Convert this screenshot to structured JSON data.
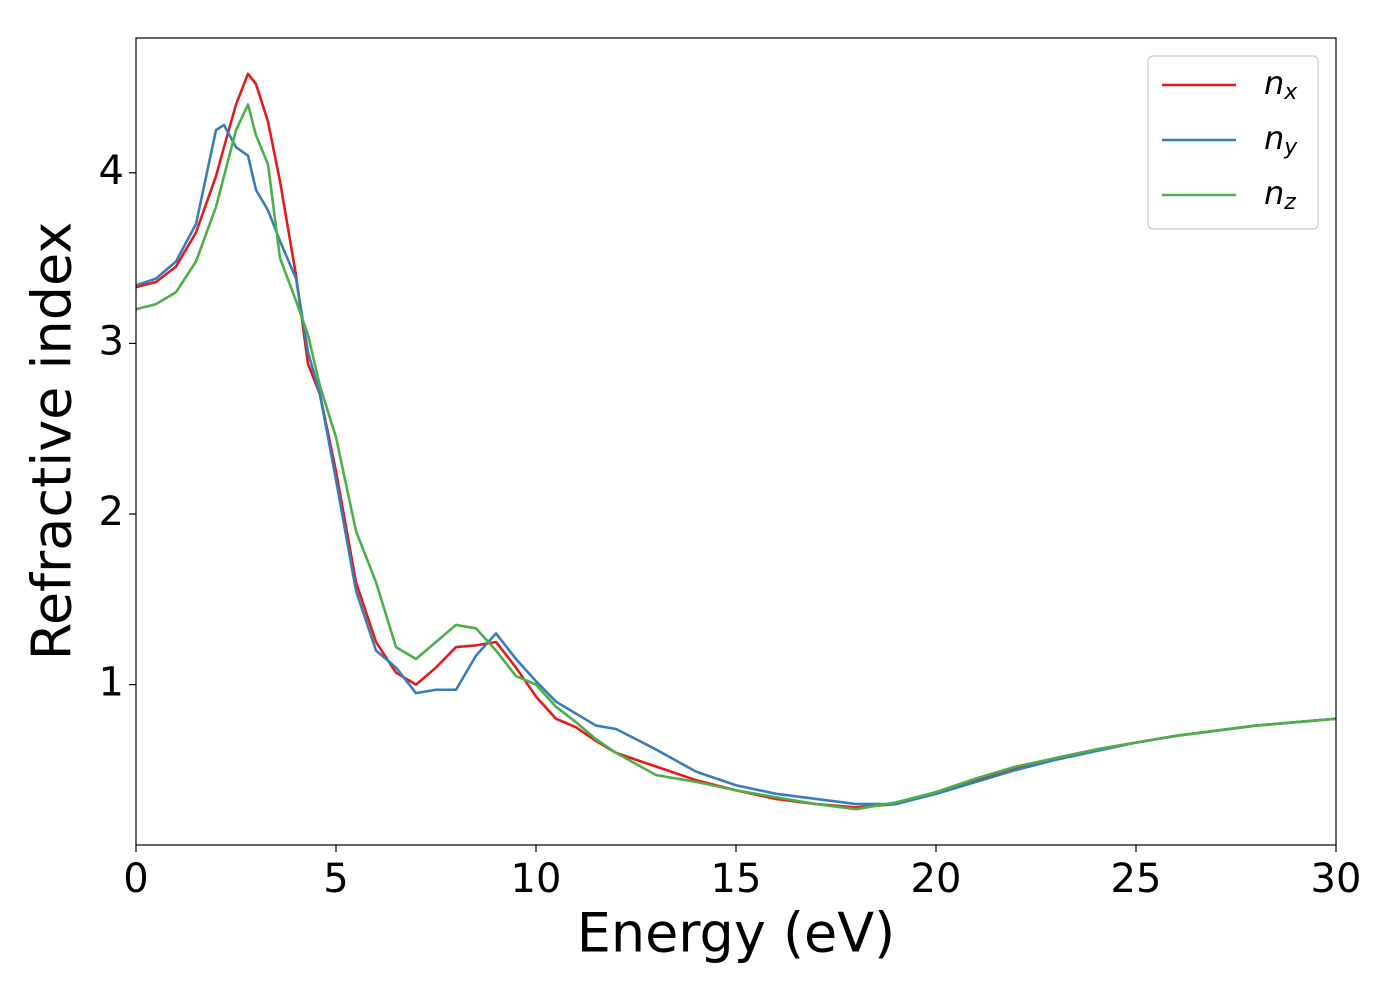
{
  "chart_data": {
    "type": "line",
    "x_label": "Energy (eV)",
    "y_label": "Refractive index",
    "x": [
      0,
      0.5,
      1,
      1.5,
      2,
      2.2,
      2.5,
      2.8,
      3,
      3.3,
      3.6,
      4,
      4.3,
      4.6,
      5,
      5.5,
      6,
      6.5,
      7,
      7.5,
      8,
      8.5,
      9,
      9.5,
      10,
      10.5,
      11,
      11.5,
      12,
      13,
      14,
      15,
      16,
      17,
      18,
      19,
      20,
      21,
      22,
      23,
      24,
      25,
      26,
      27,
      28,
      29,
      30
    ],
    "series": [
      {
        "name": "nx",
        "color": "#e41a1c",
        "values": [
          3.33,
          3.36,
          3.45,
          3.65,
          3.98,
          4.15,
          4.4,
          4.58,
          4.52,
          4.3,
          3.95,
          3.4,
          2.88,
          2.7,
          2.25,
          1.6,
          1.25,
          1.07,
          1.0,
          1.1,
          1.22,
          1.23,
          1.25,
          1.1,
          0.93,
          0.8,
          0.75,
          0.67,
          0.6,
          0.52,
          0.44,
          0.38,
          0.33,
          0.3,
          0.28,
          0.3,
          0.37,
          0.44,
          0.51,
          0.57,
          0.62,
          0.66,
          0.7,
          0.73,
          0.76,
          0.78,
          0.8
        ]
      },
      {
        "name": "ny",
        "color": "#377eb8",
        "values": [
          3.34,
          3.38,
          3.48,
          3.7,
          4.25,
          4.28,
          4.15,
          4.1,
          3.9,
          3.78,
          3.6,
          3.38,
          2.95,
          2.7,
          2.2,
          1.55,
          1.2,
          1.1,
          0.95,
          0.97,
          0.97,
          1.17,
          1.3,
          1.15,
          1.02,
          0.9,
          0.83,
          0.76,
          0.74,
          0.62,
          0.49,
          0.41,
          0.36,
          0.33,
          0.3,
          0.3,
          0.36,
          0.43,
          0.5,
          0.56,
          0.61,
          0.66,
          0.7,
          0.73,
          0.76,
          0.78,
          0.8
        ]
      },
      {
        "name": "nz",
        "color": "#4daf4a",
        "values": [
          3.2,
          3.23,
          3.3,
          3.48,
          3.8,
          3.98,
          4.25,
          4.4,
          4.22,
          4.05,
          3.5,
          3.25,
          3.05,
          2.75,
          2.45,
          1.9,
          1.6,
          1.22,
          1.15,
          1.25,
          1.35,
          1.33,
          1.2,
          1.05,
          1.0,
          0.87,
          0.78,
          0.68,
          0.6,
          0.47,
          0.43,
          0.38,
          0.34,
          0.3,
          0.27,
          0.31,
          0.37,
          0.45,
          0.52,
          0.57,
          0.62,
          0.66,
          0.7,
          0.73,
          0.76,
          0.78,
          0.8
        ]
      }
    ],
    "xlim": [
      0,
      30
    ],
    "ylim": [
      0.06,
      4.79
    ],
    "xticks": [
      0,
      5,
      10,
      15,
      20,
      25,
      30
    ],
    "yticks": [
      1,
      2,
      3,
      4
    ],
    "grid": false,
    "legend": "upper right"
  }
}
